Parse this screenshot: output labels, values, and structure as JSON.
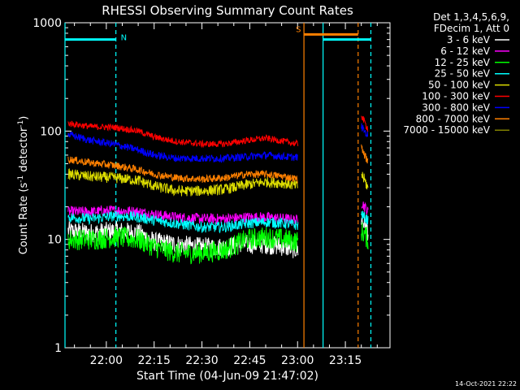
{
  "chart_data": {
    "type": "line",
    "title": "RHESSI Observing Summary Count Rates",
    "xlabel": "Start Time (04-Jun-09 21:47:02)",
    "ylabel_prefix": "Count Rate (s",
    "ylabel_sup1": "-1",
    "ylabel_mid": " detector",
    "ylabel_sup2": "-1",
    "ylabel_suffix": ")",
    "y_scale": "log",
    "ylim": [
      1,
      1000
    ],
    "xlim": [
      "21:47:02",
      "23:29:00"
    ],
    "x_ticks": [
      "22:00",
      "22:15",
      "22:30",
      "22:45",
      "23:00",
      "23:15"
    ],
    "y_ticks": [
      "1",
      "10",
      "100",
      "1000"
    ],
    "legend_header": [
      "Det 1,3,4,5,6,9,",
      "FDecim 1, Att 0"
    ],
    "legend_position": "right",
    "footer_date": "14-Oct-2021 22:22",
    "flags": [
      {
        "label": "N",
        "color": "#00ffff",
        "start": "21:47:02",
        "end": "22:03:00",
        "y": 700
      },
      {
        "label": "S",
        "color": "#ff8000",
        "start": "23:02:00",
        "end": "23:19:00",
        "y": 780
      },
      {
        "label": "",
        "color": "#00ffff",
        "start": "23:08:00",
        "end": "23:23:00",
        "y": 700
      }
    ],
    "vlines": [
      {
        "time": "21:47:02",
        "color": "#00ffff",
        "style": "solid"
      },
      {
        "time": "22:03:00",
        "color": "#00ffff",
        "style": "dashed"
      },
      {
        "time": "23:02:00",
        "color": "#ff8000",
        "style": "solid"
      },
      {
        "time": "23:08:00",
        "color": "#00ffff",
        "style": "solid"
      },
      {
        "time": "23:19:00",
        "color": "#ff8000",
        "style": "dashed"
      },
      {
        "time": "23:23:00",
        "color": "#00ffff",
        "style": "dashed"
      }
    ],
    "series": [
      {
        "name": "3 - 6 keV",
        "color": "#ffffff",
        "points": [
          [
            "21:48",
            12
          ],
          [
            "21:55",
            11.5
          ],
          [
            "22:03",
            12
          ],
          [
            "22:10",
            11.5
          ],
          [
            "22:15",
            9.5
          ],
          [
            "22:22",
            9
          ],
          [
            "22:30",
            8.5
          ],
          [
            "22:37",
            8.5
          ],
          [
            "22:44",
            9
          ],
          [
            "22:50",
            9
          ],
          [
            "22:56",
            8.5
          ],
          [
            "23:00",
            8
          ]
        ],
        "points2": [
          [
            "23:20",
            15
          ],
          [
            "23:21",
            14
          ],
          [
            "23:22",
            12
          ]
        ]
      },
      {
        "name": "6 - 12 keV",
        "color": "#ff00ff",
        "points": [
          [
            "21:48",
            18
          ],
          [
            "21:55",
            18
          ],
          [
            "22:03",
            18.5
          ],
          [
            "22:10",
            18
          ],
          [
            "22:15",
            17
          ],
          [
            "22:22",
            16
          ],
          [
            "22:30",
            15.5
          ],
          [
            "22:37",
            15.5
          ],
          [
            "22:44",
            16
          ],
          [
            "22:50",
            16
          ],
          [
            "22:56",
            15.5
          ],
          [
            "23:00",
            15
          ]
        ],
        "points2": [
          [
            "23:20",
            22
          ],
          [
            "23:21",
            20
          ],
          [
            "23:22",
            18
          ]
        ]
      },
      {
        "name": "12 - 25 keV",
        "color": "#00ff00",
        "points": [
          [
            "21:48",
            10
          ],
          [
            "21:55",
            10
          ],
          [
            "22:03",
            10.5
          ],
          [
            "22:10",
            10
          ],
          [
            "22:15",
            8.5
          ],
          [
            "22:22",
            7.5
          ],
          [
            "22:30",
            7.5
          ],
          [
            "22:37",
            8
          ],
          [
            "22:44",
            10
          ],
          [
            "22:50",
            10.5
          ],
          [
            "22:56",
            10
          ],
          [
            "23:00",
            9.5
          ]
        ],
        "points2": [
          [
            "23:20",
            12
          ],
          [
            "23:21",
            11
          ],
          [
            "23:22",
            10
          ]
        ]
      },
      {
        "name": "25 - 50 keV",
        "color": "#00ffff",
        "points": [
          [
            "21:48",
            16
          ],
          [
            "21:55",
            15.5
          ],
          [
            "22:03",
            16.5
          ],
          [
            "22:10",
            16
          ],
          [
            "22:15",
            15
          ],
          [
            "22:22",
            14
          ],
          [
            "22:30",
            13
          ],
          [
            "22:37",
            13
          ],
          [
            "22:44",
            14
          ],
          [
            "22:50",
            14.5
          ],
          [
            "22:56",
            14
          ],
          [
            "23:00",
            13.5
          ]
        ],
        "points2": [
          [
            "23:20",
            17
          ],
          [
            "23:21",
            16
          ],
          [
            "23:22",
            15
          ]
        ]
      },
      {
        "name": "50 - 100 keV",
        "color": "#dddd00",
        "points": [
          [
            "21:48",
            40
          ],
          [
            "21:55",
            38
          ],
          [
            "22:03",
            37
          ],
          [
            "22:10",
            35
          ],
          [
            "22:15",
            31
          ],
          [
            "22:22",
            28
          ],
          [
            "22:30",
            28
          ],
          [
            "22:37",
            29
          ],
          [
            "22:44",
            32
          ],
          [
            "22:50",
            34
          ],
          [
            "22:56",
            33
          ],
          [
            "23:00",
            31
          ]
        ],
        "points2": [
          [
            "23:20",
            40
          ],
          [
            "23:21",
            35
          ],
          [
            "23:22",
            30
          ]
        ]
      },
      {
        "name": "100 - 300 keV",
        "color": "#ff0000",
        "points": [
          [
            "21:48",
            118
          ],
          [
            "21:55",
            110
          ],
          [
            "22:03",
            108
          ],
          [
            "22:10",
            100
          ],
          [
            "22:15",
            88
          ],
          [
            "22:22",
            80
          ],
          [
            "22:30",
            76
          ],
          [
            "22:37",
            76
          ],
          [
            "22:44",
            82
          ],
          [
            "22:50",
            86
          ],
          [
            "22:56",
            80
          ],
          [
            "23:00",
            76
          ]
        ],
        "points2": [
          [
            "23:20",
            140
          ],
          [
            "23:21",
            120
          ],
          [
            "23:22",
            105
          ]
        ]
      },
      {
        "name": "300 - 800 keV",
        "color": "#0000ff",
        "points": [
          [
            "21:48",
            93
          ],
          [
            "21:55",
            82
          ],
          [
            "22:03",
            75
          ],
          [
            "22:10",
            67
          ],
          [
            "22:15",
            60
          ],
          [
            "22:22",
            56
          ],
          [
            "22:30",
            56
          ],
          [
            "22:37",
            56
          ],
          [
            "22:44",
            58
          ],
          [
            "22:50",
            60
          ],
          [
            "22:56",
            58
          ],
          [
            "23:00",
            57
          ]
        ],
        "points2": [
          [
            "23:20",
            110
          ],
          [
            "23:21",
            100
          ],
          [
            "23:22",
            90
          ]
        ]
      },
      {
        "name": "800 - 7000 keV",
        "color": "#ff8000",
        "points": [
          [
            "21:48",
            55
          ],
          [
            "21:55",
            51
          ],
          [
            "22:03",
            48
          ],
          [
            "22:10",
            44
          ],
          [
            "22:15",
            40
          ],
          [
            "22:22",
            37
          ],
          [
            "22:30",
            36
          ],
          [
            "22:37",
            37
          ],
          [
            "22:44",
            40
          ],
          [
            "22:50",
            40
          ],
          [
            "22:56",
            38
          ],
          [
            "23:00",
            36
          ]
        ],
        "points2": [
          [
            "23:20",
            70
          ],
          [
            "23:21",
            60
          ],
          [
            "23:22",
            52
          ]
        ]
      },
      {
        "name": "7000 - 15000 keV",
        "color": "#808000",
        "points": [],
        "points2": []
      }
    ]
  }
}
